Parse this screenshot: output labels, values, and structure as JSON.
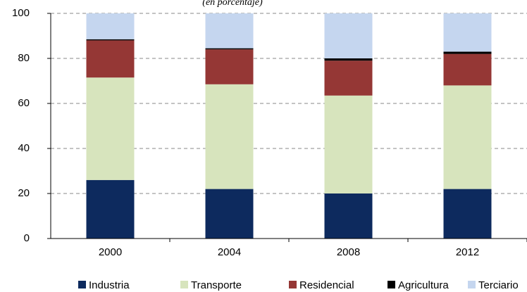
{
  "chart_data": {
    "type": "stacked_bar",
    "subtitle": "(en porcentaje)",
    "categories": [
      "2000",
      "2004",
      "2008",
      "2012"
    ],
    "series": [
      {
        "name": "Industria",
        "color": "#0d2a5e",
        "values": [
          26,
          22,
          20,
          22
        ]
      },
      {
        "name": "Transporte",
        "color": "#d7e4bd",
        "values": [
          45.5,
          46.5,
          43.5,
          46
        ]
      },
      {
        "name": "Residencial",
        "color": "#953735",
        "values": [
          16.5,
          15.5,
          15.5,
          14
        ]
      },
      {
        "name": "Agricultura",
        "color": "#000000",
        "values": [
          0.5,
          0.5,
          1,
          1
        ]
      },
      {
        "name": "Terciario",
        "color": "#c5d6ef",
        "values": [
          11.5,
          15.5,
          20,
          17
        ]
      }
    ],
    "ylim": [
      0,
      100
    ],
    "yticks": [
      0,
      20,
      40,
      60,
      80,
      100
    ],
    "grid": true
  }
}
